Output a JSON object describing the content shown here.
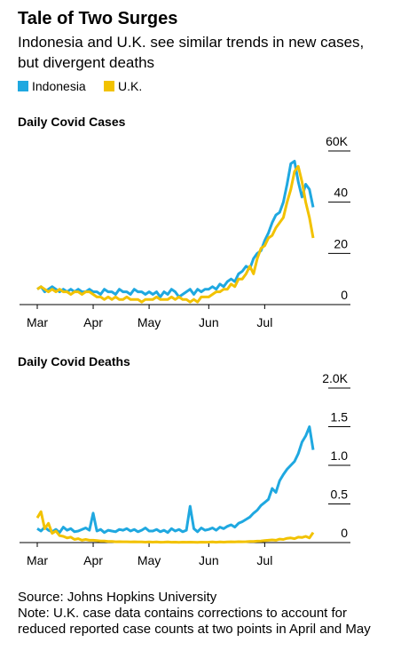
{
  "title": "Tale of Two Surges",
  "subtitle": "Indonesia and U.K. see similar trends in new cases, but divergent deaths",
  "source": "Source: Johns Hopkins University",
  "note": "Note: U.K. case data contains corrections to account for reduced reported case counts at two points in April and May",
  "chart_data": [
    {
      "type": "line",
      "title": "Daily Covid Cases",
      "categories": [
        "Mar",
        null,
        null,
        null,
        null,
        null,
        null,
        null,
        null,
        null,
        null,
        null,
        null,
        null,
        null,
        "Apr",
        null,
        null,
        null,
        null,
        null,
        null,
        null,
        null,
        null,
        null,
        null,
        null,
        null,
        null,
        "May",
        null,
        null,
        null,
        null,
        null,
        null,
        null,
        null,
        null,
        null,
        null,
        null,
        null,
        null,
        null,
        "Jun",
        null,
        null,
        null,
        null,
        null,
        null,
        null,
        null,
        null,
        null,
        null,
        null,
        null,
        null,
        "Jul",
        null,
        null,
        null,
        null,
        null,
        null,
        null,
        null,
        null,
        null,
        null,
        null,
        null
      ],
      "series": [
        {
          "name": "Indonesia",
          "color": "#1fa8e0",
          "values": [
            6000,
            7000,
            5000,
            6000,
            7000,
            6000,
            5000,
            6000,
            5000,
            6000,
            5000,
            6000,
            5000,
            5000,
            6000,
            5000,
            5000,
            4000,
            6000,
            5000,
            5000,
            4000,
            6000,
            5000,
            5000,
            4000,
            6000,
            5000,
            5000,
            4000,
            5000,
            4000,
            5000,
            3000,
            5000,
            4000,
            6000,
            5000,
            3000,
            4000,
            5000,
            6000,
            4000,
            6000,
            5000,
            6000,
            6000,
            7000,
            6000,
            8000,
            7000,
            9000,
            10000,
            9000,
            12000,
            13000,
            15000,
            14000,
            18000,
            20000,
            21000,
            25000,
            28000,
            32000,
            35000,
            36000,
            40000,
            47000,
            55000,
            56000,
            48000,
            42000,
            47000,
            45000,
            38000
          ]
        },
        {
          "name": "U.K.",
          "color": "#f2c200",
          "values": [
            6000,
            7000,
            6000,
            5000,
            6000,
            5000,
            6000,
            5000,
            5000,
            4000,
            5000,
            5000,
            4000,
            5000,
            5000,
            4000,
            3000,
            3000,
            2000,
            3000,
            2000,
            3000,
            2000,
            2000,
            3000,
            2000,
            2000,
            2000,
            1000,
            2000,
            2000,
            2000,
            3000,
            2000,
            2000,
            2000,
            3000,
            2000,
            3000,
            2000,
            2000,
            1000,
            2000,
            1000,
            3000,
            3000,
            3000,
            4000,
            5000,
            5000,
            6000,
            6000,
            8000,
            7000,
            10000,
            10000,
            12000,
            15000,
            12000,
            18000,
            22000,
            23000,
            26000,
            27000,
            30000,
            32000,
            34000,
            40000,
            45000,
            52000,
            54000,
            48000,
            40000,
            34000,
            26000
          ]
        }
      ],
      "ylim": [
        0,
        60000
      ],
      "yticks": [
        0,
        {
          "value": 20000,
          "label": "20"
        },
        {
          "value": 40000,
          "label": "40"
        },
        {
          "value": 60000,
          "label": "60K"
        }
      ]
    },
    {
      "type": "line",
      "title": "Daily Covid Deaths",
      "categories": [
        "Mar",
        null,
        null,
        null,
        null,
        null,
        null,
        null,
        null,
        null,
        null,
        null,
        null,
        null,
        null,
        "Apr",
        null,
        null,
        null,
        null,
        null,
        null,
        null,
        null,
        null,
        null,
        null,
        null,
        null,
        null,
        "May",
        null,
        null,
        null,
        null,
        null,
        null,
        null,
        null,
        null,
        null,
        null,
        null,
        null,
        null,
        null,
        "Jun",
        null,
        null,
        null,
        null,
        null,
        null,
        null,
        null,
        null,
        null,
        null,
        null,
        null,
        null,
        "Jul",
        null,
        null,
        null,
        null,
        null,
        null,
        null,
        null,
        null,
        null,
        null,
        null,
        null
      ],
      "series": [
        {
          "name": "Indonesia",
          "color": "#1fa8e0",
          "values": [
            180,
            150,
            200,
            160,
            140,
            170,
            130,
            200,
            160,
            180,
            140,
            150,
            170,
            190,
            160,
            380,
            150,
            170,
            130,
            160,
            150,
            140,
            170,
            160,
            180,
            150,
            170,
            140,
            160,
            190,
            150,
            150,
            170,
            140,
            160,
            130,
            180,
            150,
            170,
            140,
            160,
            470,
            180,
            140,
            190,
            160,
            170,
            190,
            160,
            200,
            180,
            210,
            230,
            200,
            250,
            270,
            300,
            330,
            380,
            420,
            480,
            520,
            560,
            700,
            650,
            800,
            880,
            950,
            1000,
            1050,
            1150,
            1300,
            1380,
            1500,
            1200
          ]
        },
        {
          "name": "U.K.",
          "color": "#f2c200",
          "values": [
            320,
            400,
            180,
            250,
            120,
            150,
            90,
            80,
            60,
            70,
            40,
            50,
            30,
            40,
            30,
            30,
            25,
            20,
            20,
            15,
            15,
            10,
            12,
            10,
            10,
            8,
            10,
            8,
            8,
            6,
            8,
            6,
            8,
            5,
            6,
            8,
            5,
            6,
            4,
            6,
            5,
            6,
            5,
            4,
            6,
            5,
            6,
            8,
            5,
            8,
            6,
            8,
            10,
            8,
            12,
            10,
            12,
            15,
            14,
            18,
            20,
            25,
            30,
            35,
            30,
            45,
            40,
            55,
            60,
            50,
            70,
            65,
            80,
            60,
            130
          ]
        }
      ],
      "ylim": [
        0,
        2000
      ],
      "yticks": [
        0,
        {
          "value": 500,
          "label": "0.5"
        },
        {
          "value": 1000,
          "label": "1.0"
        },
        {
          "value": 1500,
          "label": "1.5"
        },
        {
          "value": 2000,
          "label": "2.0K"
        }
      ]
    }
  ]
}
